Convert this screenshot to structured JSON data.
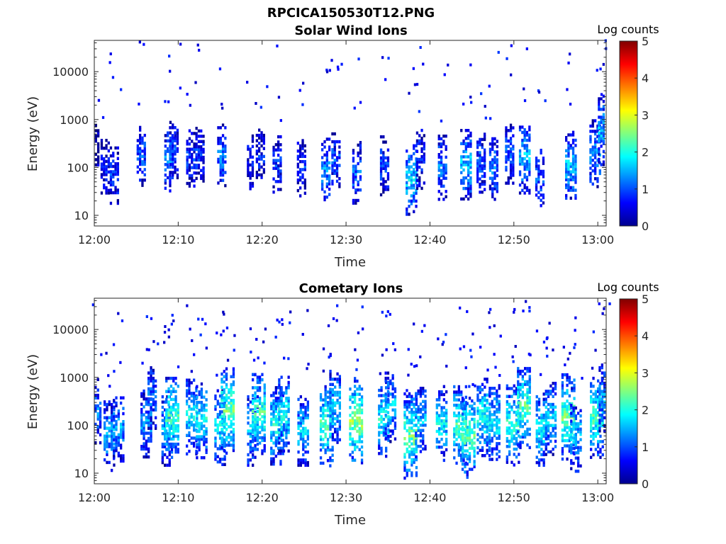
{
  "figure": {
    "title": "RPCICA150530T12.PNG"
  },
  "chart_data": [
    {
      "type": "heatmap",
      "title": "Solar Wind Ions",
      "xlabel": "Time",
      "ylabel": "Energy (eV)",
      "x_tick_labels": [
        "12:00",
        "12:10",
        "12:20",
        "12:30",
        "12:40",
        "12:50",
        "13:00"
      ],
      "x_ticks_minutes": [
        0,
        10,
        20,
        30,
        40,
        50,
        60
      ],
      "xlim_minutes": [
        0,
        61
      ],
      "y_tick_labels": [
        "10",
        "100",
        "1000",
        "10000"
      ],
      "y_ticks": [
        10,
        100,
        1000,
        10000
      ],
      "ylim": [
        6,
        45000
      ],
      "y_scale": "log",
      "colorbar": {
        "label": "Log counts",
        "min": 0,
        "max": 5,
        "tick_labels": [
          "0",
          "1",
          "2",
          "3",
          "4",
          "5"
        ],
        "colormap": "jet"
      },
      "bursts": [
        {
          "t": 0.2,
          "e": 280,
          "v": 0.3
        },
        {
          "t": 1.3,
          "e": 110,
          "v": 0.7
        },
        {
          "t": 2.4,
          "e": 70,
          "v": 0.8
        },
        {
          "t": 5.6,
          "e": 180,
          "v": 1.0
        },
        {
          "t": 8.9,
          "e": 150,
          "v": 1.2
        },
        {
          "t": 9.5,
          "e": 250,
          "v": 0.9
        },
        {
          "t": 11.5,
          "e": 160,
          "v": 0.8
        },
        {
          "t": 12.6,
          "e": 180,
          "v": 0.8
        },
        {
          "t": 15.2,
          "e": 170,
          "v": 1.2
        },
        {
          "t": 18.6,
          "e": 130,
          "v": 0.6
        },
        {
          "t": 19.8,
          "e": 180,
          "v": 0.7
        },
        {
          "t": 21.8,
          "e": 120,
          "v": 0.8
        },
        {
          "t": 24.7,
          "e": 100,
          "v": 0.8
        },
        {
          "t": 27.6,
          "e": 90,
          "v": 1.3
        },
        {
          "t": 28.8,
          "e": 150,
          "v": 1.0
        },
        {
          "t": 31.3,
          "e": 80,
          "v": 1.1
        },
        {
          "t": 34.6,
          "e": 110,
          "v": 0.9
        },
        {
          "t": 37.8,
          "e": 60,
          "v": 1.7
        },
        {
          "t": 38.9,
          "e": 150,
          "v": 0.9
        },
        {
          "t": 41.5,
          "e": 100,
          "v": 1.2
        },
        {
          "t": 44.3,
          "e": 120,
          "v": 1.6
        },
        {
          "t": 46.1,
          "e": 130,
          "v": 1.0
        },
        {
          "t": 47.6,
          "e": 100,
          "v": 1.2
        },
        {
          "t": 49.5,
          "e": 200,
          "v": 1.0
        },
        {
          "t": 51.3,
          "e": 160,
          "v": 1.6
        },
        {
          "t": 53.1,
          "e": 60,
          "v": 1.0
        },
        {
          "t": 56.8,
          "e": 110,
          "v": 1.6
        },
        {
          "t": 59.7,
          "e": 200,
          "v": 1.4
        },
        {
          "t": 60.7,
          "e": 600,
          "v": 1.5
        }
      ]
    },
    {
      "type": "heatmap",
      "title": "Cometary Ions",
      "xlabel": "Time",
      "ylabel": "Energy (eV)",
      "x_tick_labels": [
        "12:00",
        "12:10",
        "12:20",
        "12:30",
        "12:40",
        "12:50",
        "13:00"
      ],
      "x_ticks_minutes": [
        0,
        10,
        20,
        30,
        40,
        50,
        60
      ],
      "xlim_minutes": [
        0,
        61
      ],
      "y_tick_labels": [
        "10",
        "100",
        "1000",
        "10000"
      ],
      "y_ticks": [
        10,
        100,
        1000,
        10000
      ],
      "ylim": [
        6,
        45000
      ],
      "y_scale": "log",
      "colorbar": {
        "label": "Log counts",
        "min": 0,
        "max": 5,
        "tick_labels": [
          "0",
          "1",
          "2",
          "3",
          "4",
          "5"
        ],
        "colormap": "jet"
      },
      "bursts": [
        {
          "t": 0.3,
          "e": 200,
          "v": 1.2
        },
        {
          "t": 1.8,
          "e": 60,
          "v": 1.5
        },
        {
          "t": 2.9,
          "e": 90,
          "v": 1.4
        },
        {
          "t": 6.2,
          "e": 110,
          "v": 1.4
        },
        {
          "t": 6.9,
          "e": 400,
          "v": 1.2
        },
        {
          "t": 8.7,
          "e": 80,
          "v": 1.6
        },
        {
          "t": 9.3,
          "e": 150,
          "v": 2.2
        },
        {
          "t": 11.6,
          "e": 150,
          "v": 1.8
        },
        {
          "t": 12.8,
          "e": 130,
          "v": 1.9
        },
        {
          "t": 15.0,
          "e": 90,
          "v": 1.8
        },
        {
          "t": 15.9,
          "e": 200,
          "v": 2.4
        },
        {
          "t": 18.9,
          "e": 80,
          "v": 1.6
        },
        {
          "t": 19.6,
          "e": 180,
          "v": 2.2
        },
        {
          "t": 21.8,
          "e": 100,
          "v": 2.0
        },
        {
          "t": 22.6,
          "e": 180,
          "v": 1.9
        },
        {
          "t": 24.9,
          "e": 80,
          "v": 1.6
        },
        {
          "t": 27.7,
          "e": 100,
          "v": 2.2
        },
        {
          "t": 28.7,
          "e": 250,
          "v": 1.7
        },
        {
          "t": 31.2,
          "e": 120,
          "v": 2.6
        },
        {
          "t": 34.5,
          "e": 140,
          "v": 1.9
        },
        {
          "t": 35.3,
          "e": 250,
          "v": 1.6
        },
        {
          "t": 37.7,
          "e": 60,
          "v": 2.4
        },
        {
          "t": 38.9,
          "e": 120,
          "v": 1.6
        },
        {
          "t": 41.4,
          "e": 110,
          "v": 1.8
        },
        {
          "t": 43.6,
          "e": 100,
          "v": 2.2
        },
        {
          "t": 44.6,
          "e": 60,
          "v": 2.3
        },
        {
          "t": 46.4,
          "e": 150,
          "v": 2.0
        },
        {
          "t": 47.7,
          "e": 120,
          "v": 1.9
        },
        {
          "t": 49.9,
          "e": 100,
          "v": 2.1
        },
        {
          "t": 51.2,
          "e": 250,
          "v": 2.3
        },
        {
          "t": 53.3,
          "e": 80,
          "v": 1.9
        },
        {
          "t": 54.4,
          "e": 140,
          "v": 1.7
        },
        {
          "t": 56.5,
          "e": 150,
          "v": 2.4
        },
        {
          "t": 57.4,
          "e": 60,
          "v": 1.6
        },
        {
          "t": 59.9,
          "e": 150,
          "v": 2.2
        },
        {
          "t": 60.8,
          "e": 400,
          "v": 1.5
        }
      ]
    }
  ]
}
